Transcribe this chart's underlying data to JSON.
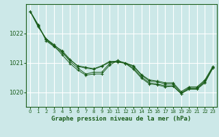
{
  "title": "Graphe pression niveau de la mer (hPa)",
  "bg_color": "#cce8e8",
  "grid_color": "#ffffff",
  "line_color": "#1a5c1a",
  "xlim": [
    -0.5,
    23.5
  ],
  "ylim": [
    1019.5,
    1023.0
  ],
  "yticks": [
    1020,
    1021,
    1022
  ],
  "xticks": [
    0,
    1,
    2,
    3,
    4,
    5,
    6,
    7,
    8,
    9,
    10,
    11,
    12,
    13,
    14,
    15,
    16,
    17,
    18,
    19,
    20,
    21,
    22,
    23
  ],
  "series": [
    [
      1022.75,
      1022.3,
      1021.75,
      1021.55,
      1021.35,
      1021.1,
      1020.9,
      1020.85,
      1020.8,
      1020.9,
      1021.05,
      1021.05,
      1021.0,
      1020.9,
      1020.6,
      1020.42,
      1020.38,
      1020.32,
      1020.32,
      1020.02,
      1020.18,
      1020.18,
      1020.42,
      1020.88
    ],
    [
      1022.75,
      1022.28,
      1021.78,
      1021.58,
      1021.42,
      1021.12,
      1020.88,
      1020.82,
      1020.78,
      1020.88,
      1021.02,
      1021.02,
      1020.98,
      1020.88,
      1020.58,
      1020.38,
      1020.35,
      1020.28,
      1020.28,
      1019.98,
      1020.15,
      1020.15,
      1020.38,
      1020.85
    ],
    [
      1022.75,
      1022.25,
      1021.82,
      1021.62,
      1021.38,
      1021.05,
      1020.82,
      1020.62,
      1020.68,
      1020.68,
      1020.98,
      1021.08,
      1020.98,
      1020.82,
      1020.52,
      1020.32,
      1020.28,
      1020.22,
      1020.22,
      1019.95,
      1020.12,
      1020.12,
      1020.35,
      1020.82
    ],
    [
      1022.75,
      1022.22,
      1021.82,
      1021.58,
      1021.28,
      1020.98,
      1020.75,
      1020.58,
      1020.62,
      1020.62,
      1020.92,
      1021.08,
      1020.98,
      1020.78,
      1020.48,
      1020.28,
      1020.25,
      1020.18,
      1020.2,
      1019.95,
      1020.1,
      1020.1,
      1020.32,
      1020.82
    ]
  ]
}
